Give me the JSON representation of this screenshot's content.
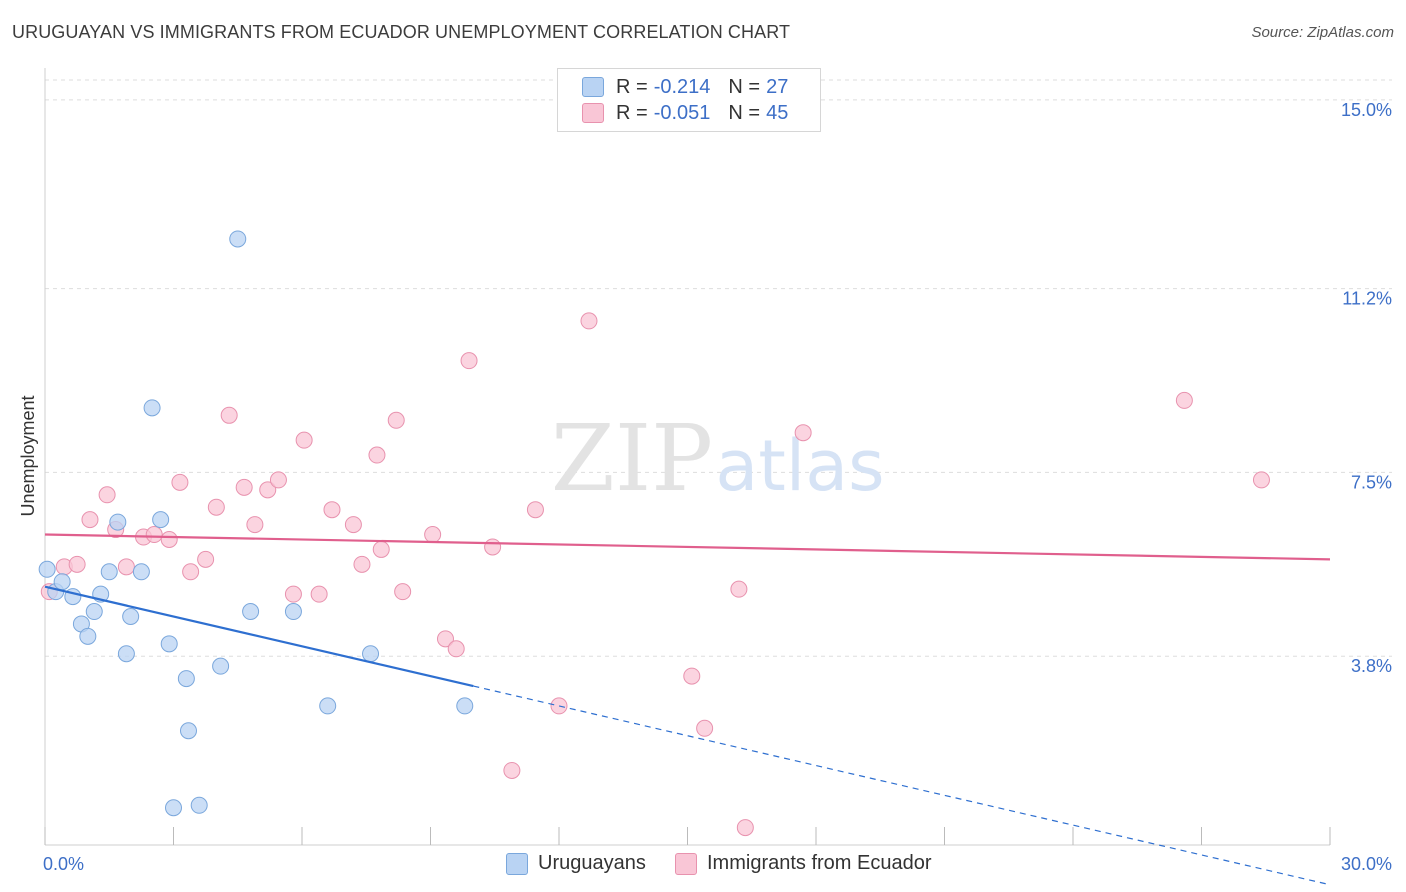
{
  "header": {
    "title": "URUGUAYAN VS IMMIGRANTS FROM ECUADOR UNEMPLOYMENT CORRELATION CHART",
    "source": "Source: ZipAtlas.com"
  },
  "legend": {
    "rows": [
      {
        "r_label": "R =",
        "r_value": "-0.214",
        "n_label": "N =",
        "n_value": "27"
      },
      {
        "r_label": "R =",
        "r_value": "-0.051",
        "n_label": "N =",
        "n_value": "45"
      }
    ]
  },
  "watermark": {
    "zip": "ZIP",
    "atlas": "atlas"
  },
  "colors": {
    "blue_fill": "#b9d3f3",
    "blue_stroke": "#7aa7dc",
    "blue_line": "#2e6fd0",
    "pink_fill": "#f9c6d6",
    "pink_stroke": "#e892ae",
    "pink_line": "#e05f8d",
    "tick_label": "#3d6fc7"
  },
  "chart_data": {
    "type": "scatter",
    "title": "URUGUAYAN VS IMMIGRANTS FROM ECUADOR UNEMPLOYMENT CORRELATION CHART",
    "xlabel": "",
    "ylabel": "Unemployment",
    "xlim": [
      0,
      30
    ],
    "ylim": [
      0,
      15.4
    ],
    "x_tick_labels": [
      "0.0%",
      "30.0%"
    ],
    "y_ticks": [
      3.8,
      7.5,
      11.2,
      15.0
    ],
    "y_tick_labels": [
      "3.8%",
      "7.5%",
      "11.2%",
      "15.0%"
    ],
    "grid": true,
    "series": [
      {
        "name": "Uruguayans",
        "color": "#b9d3f3",
        "r": -0.214,
        "n": 27,
        "trend": {
          "x0": 0.0,
          "y0": 5.2,
          "x1": 10.0,
          "y1": 3.2,
          "dash_to_x": 30.0
        },
        "points": [
          [
            0.05,
            5.55
          ],
          [
            0.25,
            5.1
          ],
          [
            0.4,
            5.3
          ],
          [
            0.65,
            5.0
          ],
          [
            0.85,
            4.45
          ],
          [
            1.0,
            4.2
          ],
          [
            1.15,
            4.7
          ],
          [
            1.3,
            5.05
          ],
          [
            1.5,
            5.5
          ],
          [
            1.7,
            6.5
          ],
          [
            1.9,
            3.85
          ],
          [
            2.0,
            4.6
          ],
          [
            2.25,
            5.5
          ],
          [
            2.5,
            8.8
          ],
          [
            2.7,
            6.55
          ],
          [
            2.9,
            4.05
          ],
          [
            3.3,
            3.35
          ],
          [
            3.35,
            2.3
          ],
          [
            3.0,
            0.75
          ],
          [
            3.6,
            0.8
          ],
          [
            4.1,
            3.6
          ],
          [
            4.5,
            12.2
          ],
          [
            4.8,
            4.7
          ],
          [
            5.8,
            4.7
          ],
          [
            6.6,
            2.8
          ],
          [
            7.6,
            3.85
          ],
          [
            9.8,
            2.8
          ]
        ]
      },
      {
        "name": "Immigrants from Ecuador",
        "color": "#f9c6d6",
        "r": -0.051,
        "n": 45,
        "trend": {
          "x0": 0.0,
          "y0": 6.25,
          "x1": 30.0,
          "y1": 5.75
        },
        "points": [
          [
            0.1,
            5.1
          ],
          [
            0.45,
            5.6
          ],
          [
            0.75,
            5.65
          ],
          [
            1.05,
            6.55
          ],
          [
            1.45,
            7.05
          ],
          [
            1.65,
            6.35
          ],
          [
            1.9,
            5.6
          ],
          [
            2.3,
            6.2
          ],
          [
            2.55,
            6.25
          ],
          [
            2.9,
            6.15
          ],
          [
            3.15,
            7.3
          ],
          [
            3.4,
            5.5
          ],
          [
            3.75,
            5.75
          ],
          [
            4.0,
            6.8
          ],
          [
            4.3,
            8.65
          ],
          [
            4.65,
            7.2
          ],
          [
            4.9,
            6.45
          ],
          [
            5.2,
            7.15
          ],
          [
            5.45,
            7.35
          ],
          [
            5.8,
            5.05
          ],
          [
            6.05,
            8.15
          ],
          [
            6.4,
            5.05
          ],
          [
            6.7,
            6.75
          ],
          [
            7.2,
            6.45
          ],
          [
            7.4,
            5.65
          ],
          [
            7.75,
            7.85
          ],
          [
            7.85,
            5.95
          ],
          [
            8.2,
            8.55
          ],
          [
            8.35,
            5.1
          ],
          [
            9.05,
            6.25
          ],
          [
            9.35,
            4.15
          ],
          [
            9.6,
            3.95
          ],
          [
            9.9,
            9.75
          ],
          [
            10.45,
            6.0
          ],
          [
            10.9,
            1.5
          ],
          [
            11.45,
            6.75
          ],
          [
            12.0,
            2.8
          ],
          [
            12.7,
            10.55
          ],
          [
            15.1,
            3.4
          ],
          [
            15.4,
            2.35
          ],
          [
            16.2,
            5.15
          ],
          [
            16.35,
            0.35
          ],
          [
            17.7,
            8.3
          ],
          [
            26.6,
            8.95
          ],
          [
            28.4,
            7.35
          ]
        ]
      }
    ]
  },
  "bottom_legend": {
    "items": [
      {
        "label": "Uruguayans"
      },
      {
        "label": "Immigrants from Ecuador"
      }
    ]
  }
}
